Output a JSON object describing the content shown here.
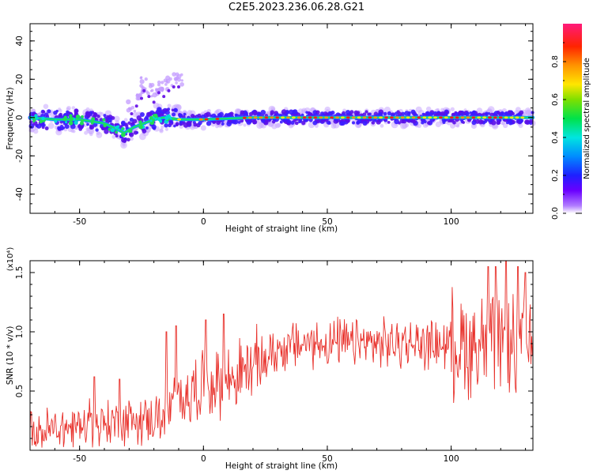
{
  "title": "C2E5.2023.236.06.28.G21",
  "chart_data": [
    {
      "type": "heatmap",
      "xlabel": "Height of straight line (km)",
      "ylabel": "Frequency (Hz)",
      "xlim": [
        -70,
        133
      ],
      "ylim": [
        -50,
        49
      ],
      "xticks": [
        "-50",
        "0",
        "50",
        "100"
      ],
      "yticks": [
        "40",
        "20",
        "0",
        "-20",
        "-40"
      ],
      "colorbar": {
        "label": "Normalized spectral amplitude",
        "ticks": [
          "0.0",
          "0.2",
          "0.4",
          "0.6",
          "0.8"
        ],
        "range": [
          0,
          1
        ]
      },
      "trace_centerline": {
        "x": [
          -70,
          -60,
          -50,
          -45,
          -40,
          -35,
          -32,
          -28,
          -24,
          -20,
          -16,
          -10,
          0,
          20,
          40,
          60,
          80,
          100,
          120,
          133
        ],
        "y": [
          0,
          -1,
          -1,
          -2,
          -3,
          -6,
          -8,
          -5,
          -3,
          -1,
          0,
          -1,
          -1,
          0,
          0,
          0,
          0,
          0,
          0,
          0
        ]
      },
      "branch_points": {
        "x": [
          -29,
          -27,
          -25,
          -24,
          -22,
          -20,
          -18,
          -16,
          -14,
          -12,
          -10
        ],
        "y": [
          6,
          10,
          14,
          18,
          15,
          12,
          17,
          15,
          18,
          20,
          20
        ]
      }
    },
    {
      "type": "line",
      "xlabel": "Height of straight line (km)",
      "ylabel": "SNR (10 * v/v)",
      "multiplier": "(x10⁴)",
      "xlim": [
        -70,
        133
      ],
      "ylim": [
        0,
        1.6
      ],
      "xticks": [
        "-50",
        "0",
        "50",
        "100"
      ],
      "yticks": [
        "0.5",
        "1.0",
        "1.5"
      ],
      "color": "#e8302a",
      "envelope": {
        "x": [
          -70,
          -50,
          -30,
          -15,
          -10,
          0,
          10,
          20,
          30,
          40,
          60,
          80,
          100,
          110,
          120,
          133
        ],
        "y": [
          0.15,
          0.2,
          0.25,
          0.28,
          0.45,
          0.55,
          0.6,
          0.7,
          0.85,
          0.9,
          0.9,
          0.9,
          0.9,
          0.9,
          0.85,
          0.85
        ]
      },
      "spikes": {
        "x": [
          -44,
          -34,
          -15,
          -11,
          1,
          8,
          115,
          118,
          122,
          127,
          130
        ],
        "y": [
          0.62,
          0.6,
          1.0,
          1.05,
          1.1,
          1.15,
          1.55,
          1.55,
          1.6,
          1.55,
          1.5
        ]
      }
    }
  ]
}
